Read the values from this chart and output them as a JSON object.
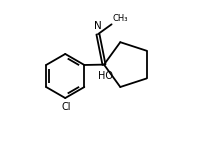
{
  "bg_color": "#ffffff",
  "line_color": "#000000",
  "lw": 1.3,
  "figsize": [
    2.08,
    1.52
  ],
  "dpi": 100,
  "labels": {
    "N": "N",
    "methyl": "CH₃",
    "HO": "HO",
    "Cl": "Cl"
  }
}
